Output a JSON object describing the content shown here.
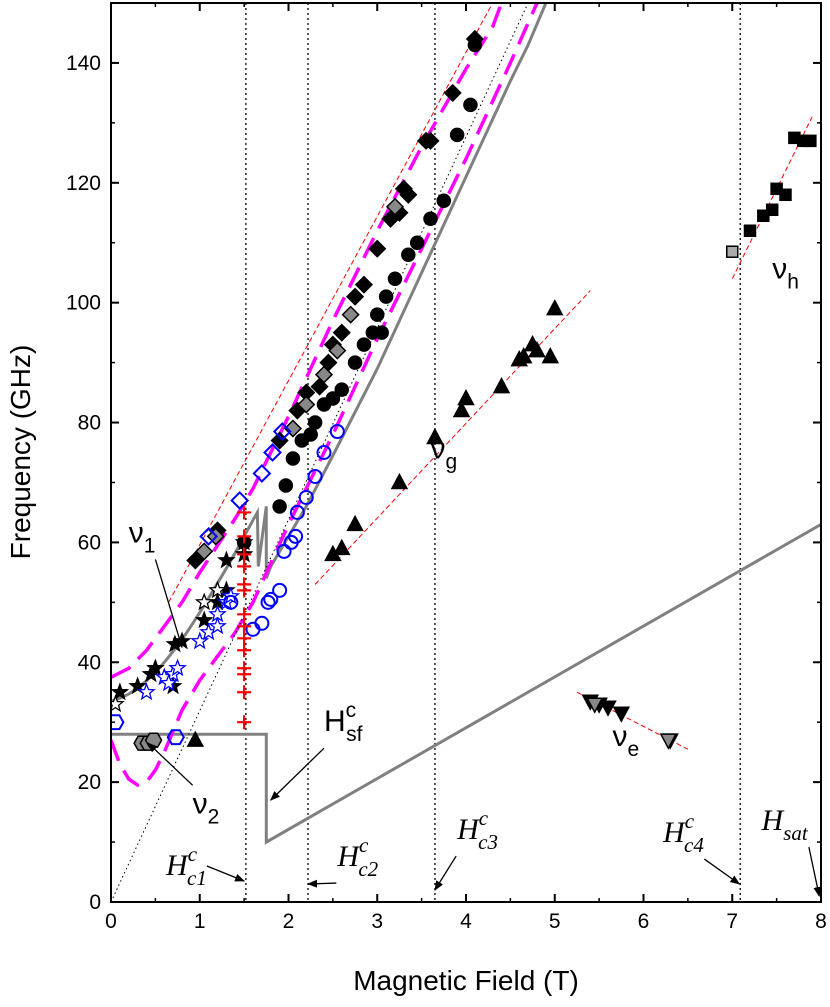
{
  "chart_data": {
    "type": "scatter",
    "xlabel": "Magnetic Field (T)",
    "ylabel": "Frequency (GHz)",
    "xlim": [
      0,
      8
    ],
    "ylim": [
      0,
      150
    ],
    "xticks": [
      0,
      1,
      2,
      3,
      4,
      5,
      6,
      7,
      8
    ],
    "xtick_labels": [
      "0",
      "1",
      "2",
      "3",
      "4",
      "5",
      "6",
      "7",
      "8"
    ],
    "yticks": [
      0,
      20,
      40,
      60,
      80,
      100,
      120,
      140
    ],
    "ytick_labels": [
      "0",
      "20",
      "40",
      "60",
      "80",
      "100",
      "120",
      "140"
    ],
    "grid": false,
    "vlines": [
      1.52,
      2.22,
      3.65,
      7.09
    ],
    "annotations": [
      {
        "id": "nu1",
        "main": "ν",
        "sub": "1",
        "italic": false,
        "x": 0.2,
        "y": 60,
        "arrow_to": [
          0.8,
          42.5
        ]
      },
      {
        "id": "nu2",
        "main": "ν",
        "sub": "2",
        "italic": false,
        "x": 0.92,
        "y": 14.8,
        "arrow_to": [
          0.42,
          26.5
        ]
      },
      {
        "id": "nug",
        "main": "ν",
        "sub": "g",
        "italic": false,
        "x": 3.6,
        "y": 74,
        "arrow_to": null
      },
      {
        "id": "nue",
        "main": "ν",
        "sub": "e",
        "italic": false,
        "x": 5.65,
        "y": 26,
        "arrow_to": null
      },
      {
        "id": "nuh",
        "main": "ν",
        "sub": "h",
        "italic": false,
        "x": 7.45,
        "y": 104,
        "arrow_to": null
      },
      {
        "id": "hsf",
        "main": "H",
        "sup": "c",
        "sub": "sf",
        "italic": false,
        "x": 2.4,
        "y": 28.5,
        "arrow_to": [
          1.8,
          17
        ]
      },
      {
        "id": "hc1",
        "main": "H",
        "sup": "c",
        "sub": "c1",
        "italic": true,
        "x": 0.62,
        "y": 4.5,
        "arrow_to": [
          1.5,
          3.5
        ]
      },
      {
        "id": "hc2",
        "main": "H",
        "sup": "c",
        "sub": "c2",
        "italic": true,
        "x": 2.55,
        "y": 6,
        "arrow_to": [
          2.22,
          3
        ]
      },
      {
        "id": "hc3",
        "main": "H",
        "sup": "c",
        "sub": "c3",
        "italic": true,
        "x": 3.9,
        "y": 10.5,
        "arrow_to": [
          3.65,
          2
        ]
      },
      {
        "id": "hc4",
        "main": "H",
        "sup": "c",
        "sub": "c4",
        "italic": true,
        "x": 6.22,
        "y": 10,
        "arrow_to": [
          7.08,
          3
        ]
      },
      {
        "id": "hsat",
        "main": "H",
        "sub": "sat",
        "italic": true,
        "x": 7.33,
        "y": 12,
        "arrow_to": [
          7.98,
          1
        ]
      }
    ],
    "series": [
      {
        "kind": "theory-solid",
        "color": "#808080",
        "points": [
          [
            0,
            33.5
          ],
          [
            0.1,
            34
          ],
          [
            0.2,
            34.7
          ],
          [
            0.3,
            35.7
          ],
          [
            0.4,
            36.9
          ],
          [
            0.5,
            38.3
          ],
          [
            0.6,
            40
          ],
          [
            0.7,
            41.8
          ],
          [
            0.8,
            43.8
          ],
          [
            0.9,
            46
          ],
          [
            1.0,
            48.3
          ],
          [
            1.1,
            50.7
          ],
          [
            1.2,
            53.2
          ],
          [
            1.3,
            55.7
          ],
          [
            1.4,
            58.3
          ],
          [
            1.5,
            61
          ],
          [
            1.6,
            63.7
          ],
          [
            1.65,
            65
          ],
          [
            1.66,
            56
          ],
          [
            1.75,
            66
          ],
          [
            1.75,
            54
          ],
          [
            1.8,
            56
          ],
          [
            2.0,
            61
          ],
          [
            2.2,
            66
          ],
          [
            2.5,
            74.5
          ],
          [
            3.0,
            89
          ],
          [
            3.5,
            105
          ],
          [
            4.0,
            121
          ],
          [
            4.5,
            137
          ],
          [
            4.7,
            143
          ],
          [
            4.9,
            150
          ]
        ]
      },
      {
        "kind": "theory-solid",
        "color": "#808080",
        "points": [
          [
            0,
            28
          ],
          [
            1.75,
            28
          ],
          [
            1.75,
            10
          ],
          [
            8,
            63
          ]
        ]
      },
      {
        "kind": "theory-dashed",
        "color": "#ff00ff",
        "points": [
          [
            0,
            37.5
          ],
          [
            0.2,
            39
          ],
          [
            0.4,
            42
          ],
          [
            0.6,
            46
          ],
          [
            0.8,
            50
          ],
          [
            1.0,
            55
          ],
          [
            1.2,
            59.5
          ],
          [
            1.4,
            64
          ],
          [
            1.6,
            69
          ],
          [
            2.0,
            81
          ],
          [
            2.5,
            97
          ],
          [
            3.0,
            112
          ],
          [
            3.5,
            126
          ],
          [
            4.0,
            139
          ],
          [
            4.3,
            146
          ],
          [
            4.4,
            150
          ]
        ]
      },
      {
        "kind": "theory-dashed",
        "color": "#ff00ff",
        "points": [
          [
            0,
            27
          ],
          [
            0.1,
            23
          ],
          [
            0.2,
            20.5
          ],
          [
            0.3,
            19.5
          ],
          [
            0.4,
            20
          ],
          [
            0.5,
            22
          ],
          [
            0.6,
            25
          ],
          [
            0.7,
            28.5
          ],
          [
            0.8,
            32
          ],
          [
            1.0,
            37
          ],
          [
            1.2,
            41
          ],
          [
            1.4,
            45
          ],
          [
            1.6,
            50
          ],
          [
            2.0,
            63
          ],
          [
            2.5,
            78
          ],
          [
            3.0,
            94
          ],
          [
            3.5,
            109
          ],
          [
            4.0,
            124
          ],
          [
            4.5,
            140
          ],
          [
            4.8,
            150
          ]
        ]
      },
      {
        "kind": "dotted-guide",
        "color": "#000000",
        "points": [
          [
            0,
            0
          ],
          [
            4.7,
            150
          ]
        ]
      },
      {
        "kind": "fit-red-dashed",
        "color": "#ff0000",
        "points": [
          [
            0.65,
            50
          ],
          [
            4.3,
            150
          ]
        ]
      },
      {
        "kind": "fit-red-dashed",
        "color": "#ff0000",
        "points": [
          [
            2.3,
            53
          ],
          [
            5.4,
            102
          ]
        ]
      },
      {
        "kind": "fit-red-dashed",
        "color": "#ff0000",
        "points": [
          [
            5.25,
            35
          ],
          [
            6.5,
            25.5
          ]
        ]
      },
      {
        "kind": "fit-red-dashed",
        "color": "#ff0000",
        "points": [
          [
            7.0,
            104
          ],
          [
            7.9,
            131
          ]
        ]
      },
      {
        "marker": "diamond",
        "fill": "#000000",
        "stroke": "#000000",
        "points": [
          [
            0.95,
            57
          ],
          [
            1.2,
            62
          ],
          [
            1.9,
            77
          ],
          [
            2.1,
            82
          ],
          [
            2.2,
            85
          ],
          [
            2.35,
            86
          ],
          [
            2.45,
            90
          ],
          [
            2.5,
            93
          ],
          [
            2.6,
            95
          ],
          [
            2.75,
            101
          ],
          [
            2.85,
            103
          ],
          [
            3.0,
            109
          ],
          [
            3.15,
            114
          ],
          [
            3.25,
            115
          ],
          [
            3.35,
            118
          ],
          [
            3.3,
            119
          ],
          [
            3.6,
            127
          ],
          [
            3.55,
            127
          ],
          [
            3.85,
            135
          ],
          [
            4.1,
            144
          ]
        ]
      },
      {
        "marker": "diamond",
        "fill": "#888888",
        "stroke": "#000000",
        "points": [
          [
            1.05,
            58.5
          ],
          [
            1.18,
            61
          ],
          [
            2.05,
            79
          ],
          [
            2.2,
            83
          ],
          [
            2.4,
            88
          ],
          [
            2.55,
            92
          ],
          [
            2.7,
            98
          ],
          [
            3.2,
            116
          ]
        ]
      },
      {
        "marker": "circle",
        "fill": "#000000",
        "stroke": "#000000",
        "points": [
          [
            1.5,
            60
          ],
          [
            1.9,
            66
          ],
          [
            1.97,
            69.5
          ],
          [
            2.05,
            74
          ],
          [
            2.15,
            77
          ],
          [
            2.25,
            78
          ],
          [
            2.3,
            80
          ],
          [
            2.4,
            83
          ],
          [
            2.5,
            84
          ],
          [
            2.6,
            85.5
          ],
          [
            2.75,
            90
          ],
          [
            2.85,
            93
          ],
          [
            3.0,
            98
          ],
          [
            3.1,
            101
          ],
          [
            3.2,
            104
          ],
          [
            3.35,
            108
          ],
          [
            3.45,
            110
          ],
          [
            3.6,
            114
          ],
          [
            3.75,
            117
          ],
          [
            3.9,
            128
          ],
          [
            4.05,
            133
          ],
          [
            4.1,
            143
          ],
          [
            3.05,
            95
          ],
          [
            2.95,
            95
          ]
        ]
      },
      {
        "marker": "triangle",
        "fill": "#000000",
        "stroke": "#000000",
        "points": [
          [
            0.95,
            27
          ],
          [
            2.5,
            58
          ],
          [
            2.6,
            59
          ],
          [
            2.75,
            63
          ],
          [
            3.25,
            70
          ],
          [
            3.65,
            77.5
          ],
          [
            3.95,
            82
          ],
          [
            4.0,
            84
          ],
          [
            4.4,
            86
          ],
          [
            4.65,
            91
          ],
          [
            4.75,
            93
          ],
          [
            4.8,
            92
          ],
          [
            4.95,
            91
          ],
          [
            5.0,
            99
          ],
          [
            4.6,
            90.5
          ]
        ]
      },
      {
        "marker": "triangle-down",
        "fill": "#000000",
        "stroke": "#000000",
        "points": [
          [
            5.4,
            33.5
          ],
          [
            5.5,
            33
          ],
          [
            5.6,
            32.5
          ],
          [
            5.75,
            31.5
          ],
          [
            6.3,
            27
          ]
        ]
      },
      {
        "marker": "triangle-down",
        "fill": "#888888",
        "stroke": "#000000",
        "points": [
          [
            5.45,
            33
          ],
          [
            6.28,
            27
          ]
        ]
      },
      {
        "marker": "square",
        "fill": "#000000",
        "stroke": "#000000",
        "points": [
          [
            7.2,
            112
          ],
          [
            7.35,
            114.5
          ],
          [
            7.45,
            115.5
          ],
          [
            7.5,
            119
          ],
          [
            7.6,
            118
          ],
          [
            7.7,
            127.5
          ],
          [
            7.8,
            127
          ],
          [
            7.88,
            127
          ]
        ]
      },
      {
        "marker": "square",
        "fill": "#aaaaaa",
        "stroke": "#000000",
        "points": [
          [
            7.0,
            108.5
          ]
        ]
      },
      {
        "marker": "star",
        "fill": "#000000",
        "stroke": "#000000",
        "points": [
          [
            0.1,
            35
          ],
          [
            0.3,
            36
          ],
          [
            0.45,
            38
          ],
          [
            0.5,
            39
          ],
          [
            0.72,
            43
          ],
          [
            0.8,
            43.5
          ],
          [
            1.05,
            47
          ],
          [
            1.2,
            50
          ],
          [
            1.3,
            52
          ],
          [
            1.3,
            57
          ],
          [
            1.5,
            58
          ],
          [
            1.5,
            60
          ],
          [
            0.7,
            36
          ]
        ]
      },
      {
        "marker": "star",
        "fill": "#ffffff",
        "stroke": "#000000",
        "points": [
          [
            0.05,
            33
          ],
          [
            1.05,
            50
          ],
          [
            1.2,
            52
          ]
        ]
      },
      {
        "marker": "star",
        "fill": "#ffffff",
        "stroke": "#0000ff",
        "points": [
          [
            0.4,
            35
          ],
          [
            0.6,
            37.5
          ],
          [
            0.7,
            38
          ],
          [
            0.75,
            39
          ],
          [
            0.65,
            36.5
          ],
          [
            1.0,
            43.5
          ],
          [
            1.1,
            45
          ],
          [
            1.2,
            46
          ],
          [
            1.2,
            48
          ],
          [
            1.3,
            50
          ],
          [
            1.35,
            51
          ]
        ]
      },
      {
        "marker": "diamond-open",
        "fill": "none",
        "stroke": "#0000ff",
        "points": [
          [
            1.1,
            61
          ],
          [
            1.45,
            67
          ],
          [
            1.7,
            71.5
          ],
          [
            1.82,
            75
          ],
          [
            1.93,
            78.5
          ]
        ]
      },
      {
        "marker": "circle-open",
        "fill": "none",
        "stroke": "#0000ff",
        "points": [
          [
            1.35,
            50
          ],
          [
            1.6,
            45.5
          ],
          [
            1.7,
            46.5
          ],
          [
            1.77,
            50
          ],
          [
            1.8,
            50.5
          ],
          [
            1.9,
            52
          ],
          [
            1.95,
            58.5
          ],
          [
            2.03,
            60
          ],
          [
            2.08,
            61
          ],
          [
            2.1,
            65
          ],
          [
            2.2,
            67.5
          ],
          [
            2.3,
            71
          ],
          [
            2.4,
            75
          ],
          [
            2.55,
            78.5
          ]
        ]
      },
      {
        "marker": "hexagon",
        "fill": "#888888",
        "stroke": "#000000",
        "points": [
          [
            0.35,
            26.5
          ],
          [
            0.42,
            26.5
          ],
          [
            0.48,
            27
          ]
        ]
      },
      {
        "marker": "hexagon-open",
        "fill": "none",
        "stroke": "#0000ff",
        "points": [
          [
            0.05,
            30
          ],
          [
            0.73,
            27.5
          ]
        ]
      },
      {
        "marker": "plus",
        "fill": "none",
        "stroke": "#ff0000",
        "points": [
          [
            1.5,
            30
          ],
          [
            1.5,
            35
          ],
          [
            1.5,
            38
          ],
          [
            1.5,
            39
          ],
          [
            1.5,
            42
          ],
          [
            1.5,
            44
          ],
          [
            1.5,
            46
          ],
          [
            1.5,
            48
          ],
          [
            1.5,
            52
          ],
          [
            1.5,
            53
          ],
          [
            1.5,
            56
          ],
          [
            1.5,
            58
          ],
          [
            1.5,
            61
          ],
          [
            1.5,
            65
          ]
        ]
      }
    ]
  }
}
